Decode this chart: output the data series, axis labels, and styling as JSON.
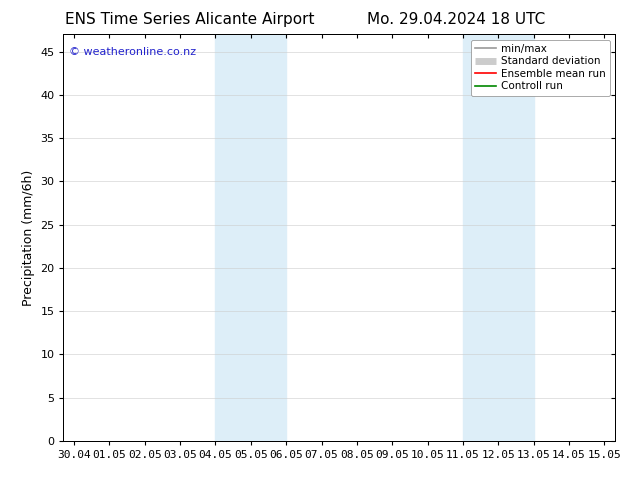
{
  "title_left": "ENS Time Series Alicante Airport",
  "title_right": "Mo. 29.04.2024 18 UTC",
  "ylabel": "Precipitation (mm/6h)",
  "background_color": "#ffffff",
  "plot_bg_color": "#ffffff",
  "ylim": [
    0,
    47
  ],
  "yticks": [
    0,
    5,
    10,
    15,
    20,
    25,
    30,
    35,
    40,
    45
  ],
  "xlabel_dates": [
    "30.04",
    "01.05",
    "02.05",
    "03.05",
    "04.05",
    "05.05",
    "06.05",
    "07.05",
    "08.05",
    "09.05",
    "10.05",
    "11.05",
    "12.05",
    "13.05",
    "14.05",
    "15.05"
  ],
  "shaded_bands": [
    {
      "xstart": 4.0,
      "xend": 6.0,
      "color": "#ddeef8"
    },
    {
      "xstart": 11.0,
      "xend": 13.0,
      "color": "#ddeef8"
    }
  ],
  "watermark_text": "© weatheronline.co.nz",
  "watermark_color": "#2222cc",
  "legend_items": [
    {
      "label": "min/max",
      "color": "#999999",
      "linestyle": "-",
      "linewidth": 1.2
    },
    {
      "label": "Standard deviation",
      "color": "#cccccc",
      "linestyle": "-",
      "linewidth": 5
    },
    {
      "label": "Ensemble mean run",
      "color": "#ff0000",
      "linestyle": "-",
      "linewidth": 1.2
    },
    {
      "label": "Controll run",
      "color": "#008800",
      "linestyle": "-",
      "linewidth": 1.2
    }
  ],
  "title_fontsize": 11,
  "tick_fontsize": 8,
  "ylabel_fontsize": 9,
  "watermark_fontsize": 8,
  "legend_fontsize": 7.5
}
